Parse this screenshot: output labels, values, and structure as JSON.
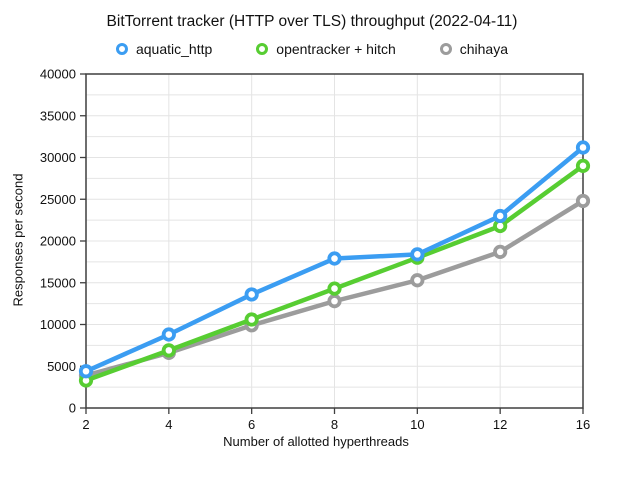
{
  "chart_data": {
    "type": "line",
    "title": "BitTorrent tracker (HTTP over TLS) throughput (2022-04-11)",
    "xlabel": "Number of allotted hyperthreads",
    "ylabel": "Responses per second",
    "categories": [
      "2",
      "4",
      "6",
      "8",
      "10",
      "12",
      "16"
    ],
    "ylim": [
      0,
      40000
    ],
    "y_tick_step": 5000,
    "y_grid_step": 2500,
    "grid": true,
    "legend_position": "top",
    "marker_style": "ring",
    "series": [
      {
        "name": "aquatic_http",
        "color": "#3b9df2",
        "values": [
          4400,
          8800,
          13600,
          17900,
          18400,
          23000,
          31200
        ]
      },
      {
        "name": "opentracker + hitch",
        "color": "#57cd32",
        "values": [
          3300,
          6900,
          10600,
          14300,
          18000,
          21800,
          29000
        ]
      },
      {
        "name": "chihaya",
        "color": "#9c9c9c",
        "values": [
          3900,
          6600,
          9900,
          12800,
          15300,
          18700,
          24800
        ]
      }
    ],
    "styles": {
      "grid_color": "#e4e4e4",
      "frame_color": "#3f3f3f",
      "background": "#ffffff",
      "text_color": "#111111"
    }
  }
}
